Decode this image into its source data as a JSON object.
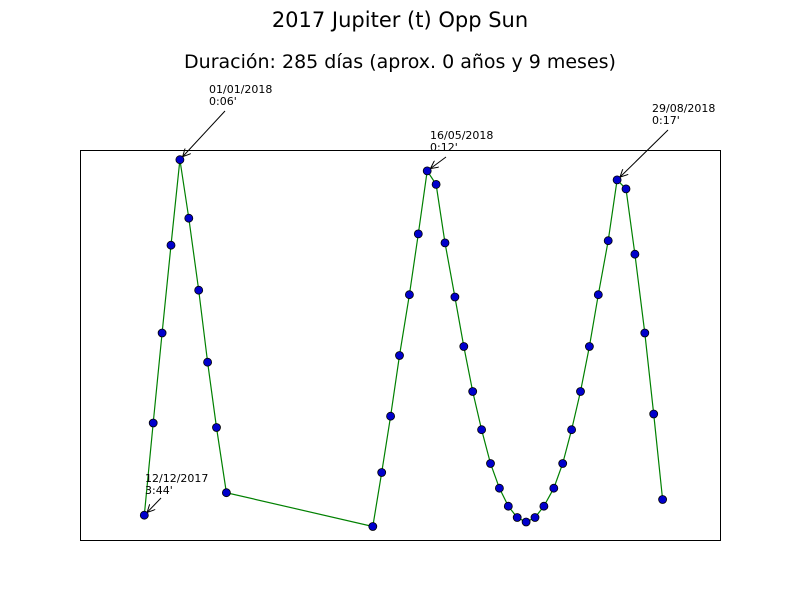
{
  "chart_data": {
    "type": "line",
    "title": "2017 Jupiter (t) Opp Sun",
    "subtitle": "Duración: 285 días (aprox. 0 años y 9 meses)",
    "xlabel": "",
    "ylabel": "",
    "xlim": [
      0,
      64.7
    ],
    "ylim": [
      0,
      17.33
    ],
    "axis_ticks": false,
    "grid": false,
    "line_color": "#008000",
    "marker_face_color": "#0000cc",
    "marker_edge_color": "#000000",
    "series": [
      {
        "x": [
          6.5,
          7.4,
          8.3,
          9.2,
          10.1,
          11.0,
          12.0,
          12.9,
          13.8,
          14.8,
          29.6,
          30.5,
          31.4,
          32.3,
          33.3,
          34.2,
          35.1,
          36.0,
          36.9,
          37.9,
          38.8,
          39.7,
          40.6,
          41.5,
          42.4,
          43.3,
          44.2,
          45.1,
          46.0,
          46.9,
          47.9,
          48.8,
          49.7,
          50.6,
          51.5,
          52.4,
          53.4,
          54.3,
          55.2,
          56.1,
          57.1,
          58.0,
          58.9
        ],
        "y": [
          1.1,
          5.2,
          9.2,
          13.1,
          16.9,
          14.3,
          11.1,
          7.9,
          5.0,
          2.1,
          0.6,
          3.0,
          5.5,
          8.2,
          10.9,
          13.6,
          16.4,
          15.8,
          13.2,
          10.8,
          8.6,
          6.6,
          4.9,
          3.4,
          2.3,
          1.5,
          1.0,
          0.8,
          1.0,
          1.5,
          2.3,
          3.4,
          4.9,
          6.6,
          8.6,
          10.9,
          13.3,
          16.0,
          15.6,
          12.7,
          9.2,
          5.6,
          1.8
        ]
      }
    ],
    "annotations": [
      {
        "date": "12/12/2017",
        "time": "3:44'"
      },
      {
        "date": "01/01/2018",
        "time": "0:06'"
      },
      {
        "date": "16/05/2018",
        "time": "0:12'"
      },
      {
        "date": "29/08/2018",
        "time": "0:17'"
      }
    ]
  }
}
